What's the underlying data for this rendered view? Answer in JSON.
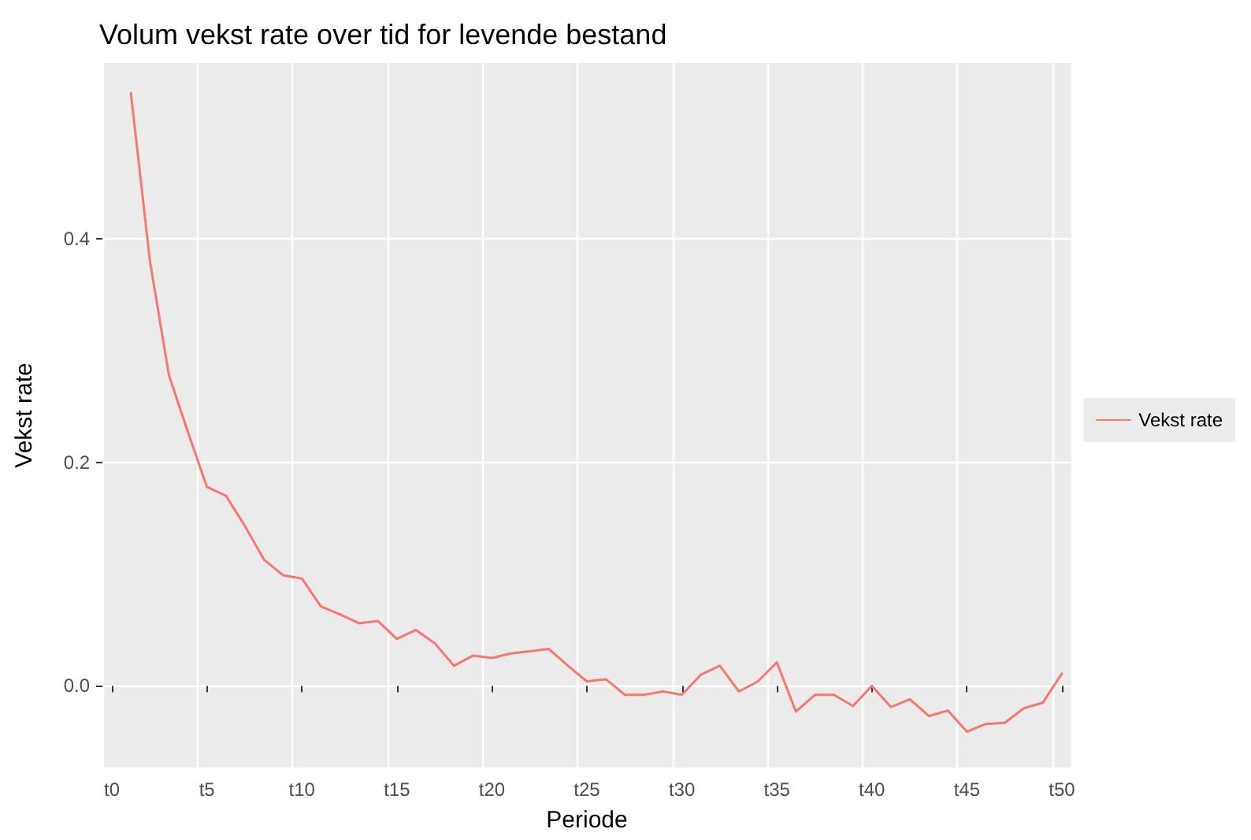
{
  "chart_data": {
    "type": "line",
    "title": "Volum vekst rate over tid for levende bestand",
    "xlabel": "Periode",
    "ylabel": "Vekst rate",
    "categories": [
      "t0",
      null,
      null,
      null,
      null,
      "t5",
      null,
      null,
      null,
      null,
      "t10",
      null,
      null,
      null,
      null,
      "t15",
      null,
      null,
      null,
      null,
      "t20",
      null,
      null,
      null,
      null,
      "t25",
      null,
      null,
      null,
      null,
      "t30",
      null,
      null,
      null,
      null,
      "t35",
      null,
      null,
      null,
      null,
      "t40",
      null,
      null,
      null,
      null,
      "t45",
      null,
      null,
      null,
      null,
      "t50"
    ],
    "series": [
      {
        "name": "Vekst rate",
        "color": "#f8766d",
        "values": [
          null,
          0.53,
          0.38,
          0.278,
          0.227,
          0.178,
          0.17,
          0.143,
          0.113,
          0.099,
          0.096,
          0.071,
          0.064,
          0.056,
          0.058,
          0.042,
          0.05,
          0.038,
          0.018,
          0.027,
          0.025,
          0.029,
          0.031,
          0.033,
          0.018,
          0.004,
          0.006,
          -0.008,
          -0.008,
          -0.005,
          -0.008,
          0.01,
          0.018,
          -0.005,
          0.004,
          0.021,
          -0.023,
          -0.008,
          -0.008,
          -0.018,
          0.0,
          -0.019,
          -0.012,
          -0.027,
          -0.022,
          -0.041,
          -0.034,
          -0.033,
          -0.02,
          -0.015,
          0.011
        ]
      }
    ],
    "ylim": [
      -0.073,
      0.557
    ],
    "yticks": [
      {
        "value": 0,
        "label": "0.0"
      },
      {
        "value": 0.2,
        "label": "0.2"
      },
      {
        "value": 0.4,
        "label": "0.4"
      }
    ],
    "grid": true,
    "legend": "right",
    "marker": "none",
    "line_style": "solid"
  }
}
